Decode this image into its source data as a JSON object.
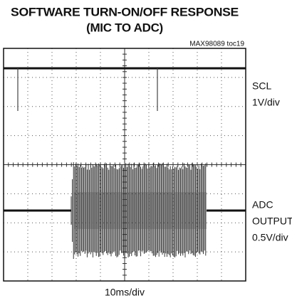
{
  "title": [
    "SOFTWARE TURN-ON/OFF RESPONSE",
    "(MIC TO ADC)"
  ],
  "note": "MAX98089 toc19",
  "channels": [
    {
      "name": "SCL",
      "scale": "1V/div"
    },
    {
      "name": [
        "ADC",
        "OUTPUT"
      ],
      "scale": "0.5V/div"
    }
  ],
  "x_scale": "10ms/div"
}
